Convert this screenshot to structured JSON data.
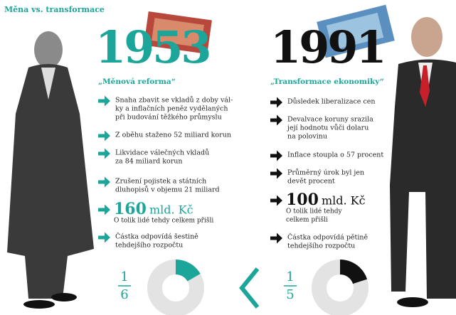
{
  "header": {
    "title": "Měna vs. transformace"
  },
  "left": {
    "year": "1953",
    "subtitle": "„Měnová reforma“",
    "bullets": [
      [
        "Snaha zbavit se vkladů z doby vál-",
        "ky a inflačních peněz vydělaných",
        "při budování těžkého průmyslu"
      ],
      [
        "Z oběhu staženo 52 miliard korun"
      ],
      [
        "Likvidace válečných vkladů",
        "za 84 miliard korun"
      ],
      [
        "Zrušení pojistek a státních",
        "dluhopisů v objemu 21 miliard"
      ]
    ],
    "highlight": {
      "amount": "160",
      "unit": "mld. Kč",
      "note": [
        "O tolik lidé tehdy celkem přišli"
      ]
    },
    "budget": [
      "Částka odpovídá šestině",
      "tehdejšího rozpočtu"
    ],
    "fraction": {
      "numerator": 1,
      "denominator": 6
    }
  },
  "right": {
    "year": "1991",
    "subtitle": "„Transformace ekonomiky“",
    "bullets": [
      [
        "Důsledek liberalizace cen"
      ],
      [
        "Devalvace koruny srazila",
        "její hodnotu vůči dolaru",
        "na polovinu"
      ],
      [
        "Inflace stoupla o 57 procent"
      ],
      [
        "Průměrný úrok byl jen",
        "devět procent"
      ]
    ],
    "highlight": {
      "amount": "100",
      "unit": "mld. Kč",
      "note": [
        "O tolik lidé tehdy",
        "celkem přišli"
      ]
    },
    "budget": [
      "Částka odpovídá pětině",
      "tehdejšího rozpočtu"
    ],
    "fraction": {
      "numerator": 1,
      "denominator": 5
    }
  }
}
